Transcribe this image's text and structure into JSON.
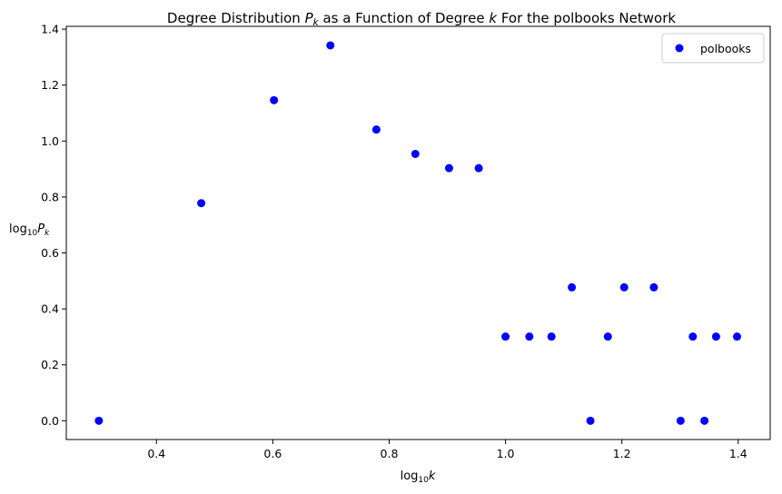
{
  "chart_data": {
    "type": "scatter",
    "title": "Degree Distribution Pₖ as a Function of Degree k For the polbooks Network",
    "title_parts": {
      "prefix": "Degree Distribution ",
      "pk": "P",
      "pk_sub": "k",
      "middle": " as a Function of Degree ",
      "k": "k",
      "suffix": " For the polbooks Network"
    },
    "xlabel": "log₁₀k",
    "xlabel_parts": {
      "log": "log",
      "sub": "10",
      "var": "k"
    },
    "ylabel": "log₁₀Pₖ",
    "ylabel_parts": {
      "log": "log",
      "sub": "10",
      "var": "P",
      "var_sub": "k"
    },
    "xlim": [
      0.245,
      1.455
    ],
    "ylim": [
      -0.067,
      1.41
    ],
    "xticks": [
      0.4,
      0.6,
      0.8,
      1.0,
      1.2,
      1.4
    ],
    "xtick_labels": [
      "0.4",
      "0.6",
      "0.8",
      "1.0",
      "1.2",
      "1.4"
    ],
    "yticks": [
      0.0,
      0.2,
      0.4,
      0.6,
      0.8,
      1.0,
      1.2,
      1.4
    ],
    "ytick_labels": [
      "0.0",
      "0.2",
      "0.4",
      "0.6",
      "0.8",
      "1.0",
      "1.2",
      "1.4"
    ],
    "grid": false,
    "legend": "top-right",
    "series": [
      {
        "name": "polbooks",
        "color": "#0000ff",
        "marker": "circle",
        "points": [
          [
            0.301,
            0.0
          ],
          [
            0.477,
            0.778
          ],
          [
            0.602,
            1.146
          ],
          [
            0.699,
            1.342
          ],
          [
            0.778,
            1.041
          ],
          [
            0.845,
            0.954
          ],
          [
            0.903,
            0.903
          ],
          [
            0.954,
            0.903
          ],
          [
            1.0,
            0.301
          ],
          [
            1.041,
            0.301
          ],
          [
            1.079,
            0.301
          ],
          [
            1.114,
            0.477
          ],
          [
            1.146,
            0.0
          ],
          [
            1.176,
            0.301
          ],
          [
            1.204,
            0.477
          ],
          [
            1.255,
            0.477
          ],
          [
            1.301,
            0.0
          ],
          [
            1.322,
            0.301
          ],
          [
            1.342,
            0.0
          ],
          [
            1.362,
            0.301
          ],
          [
            1.398,
            0.301
          ]
        ]
      }
    ]
  }
}
